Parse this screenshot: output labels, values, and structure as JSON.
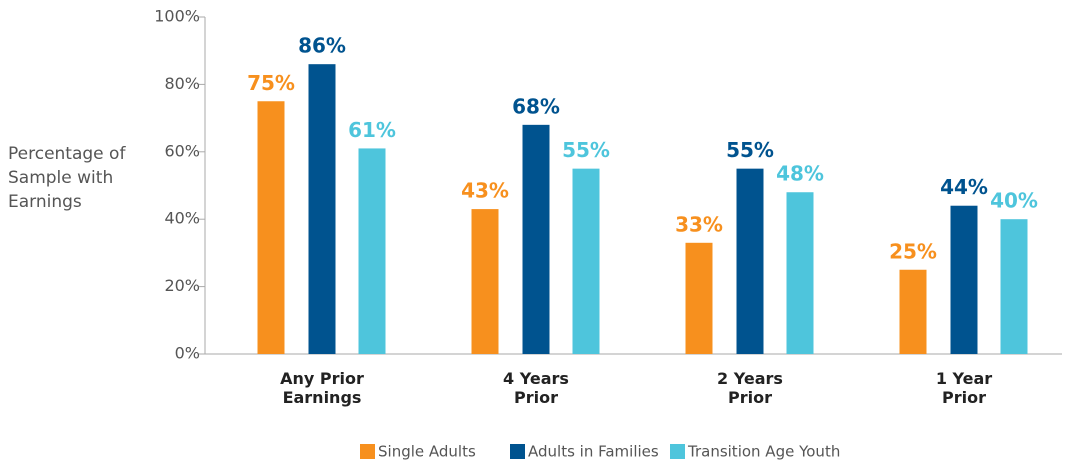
{
  "chart_data": {
    "type": "bar",
    "y_label": "Percentage of\nSample with\nEarnings",
    "categories": [
      "Any Prior\nEarnings",
      "4 Years\nPrior",
      "2 Years\nPrior",
      "1 Year\nPrior"
    ],
    "series": [
      {
        "name": "Single Adults",
        "color": "#f7901e",
        "values": [
          75,
          43,
          33,
          25
        ],
        "value_labels": [
          "75%",
          "43%",
          "33%",
          "25%"
        ]
      },
      {
        "name": "Adults in Families",
        "color": "#00538f",
        "values": [
          86,
          68,
          55,
          44
        ],
        "value_labels": [
          "86%",
          "68%",
          "55%",
          "44%"
        ]
      },
      {
        "name": "Transition Age Youth",
        "color": "#4ec5dc",
        "values": [
          61,
          55,
          48,
          40
        ],
        "value_labels": [
          "61%",
          "55%",
          "48%",
          "40%"
        ]
      }
    ],
    "ylim": [
      0,
      100
    ],
    "yticks": [
      {
        "value": 0,
        "label": "0%"
      },
      {
        "value": 20,
        "label": "20%"
      },
      {
        "value": 40,
        "label": "40%"
      },
      {
        "value": 60,
        "label": "60%"
      },
      {
        "value": 80,
        "label": "80%"
      },
      {
        "value": 100,
        "label": "100%"
      }
    ],
    "grid": false,
    "legend": "bottom"
  }
}
